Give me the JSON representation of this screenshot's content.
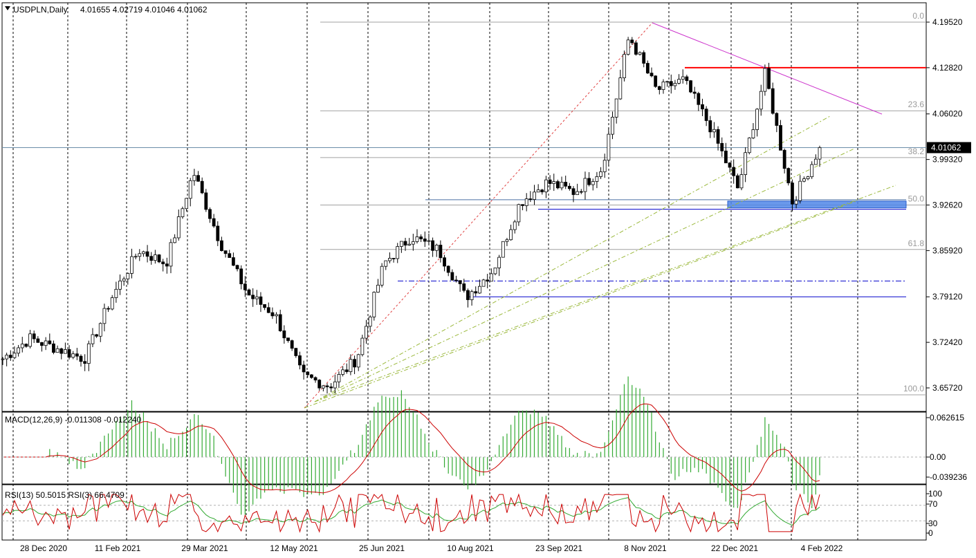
{
  "header": {
    "symbol": "USDPLN,Daily",
    "ohlc": "4.01655 4.02719 4.01046 4.01062"
  },
  "price_axis": {
    "ticks": [
      "4.19520",
      "4.12820",
      "4.06020",
      "3.99320",
      "3.92620",
      "3.85920",
      "3.79120",
      "3.72420",
      "3.65720"
    ],
    "current_price": "4.01062"
  },
  "time_axis": {
    "labels": [
      "28 Dec 2020",
      "11 Feb 2021",
      "29 Mar 2021",
      "12 May 2021",
      "25 Jun 2021",
      "10 Aug 2021",
      "23 Sep 2021",
      "8 Nov 2021",
      "22 Dec 2021",
      "4 Feb 2022"
    ]
  },
  "fibonacci": {
    "levels": [
      "0.0",
      "23.6",
      "38.2",
      "50.0",
      "61.8",
      "100.0"
    ],
    "values": [
      4.1952,
      4.0648,
      3.996,
      3.9262,
      3.8608,
      3.647
    ]
  },
  "macd": {
    "label": "MACD(12,26,9) -0.011308 -0.012240",
    "ticks": [
      "0.062615",
      "0.00",
      "-0.039236"
    ]
  },
  "rsi": {
    "label": "RSI(13) 50.5015  RSI(3) 66.4709",
    "ticks": [
      "100",
      "70",
      "30",
      "0"
    ]
  },
  "colors": {
    "background": "#ffffff",
    "bull_candle": "#ffffff",
    "bear_candle": "#000000",
    "resistance": "#ff0000",
    "trendline": "#cc33cc",
    "support": "#0000cc",
    "zone": "#4f86e8",
    "fan": "#9ab83a",
    "macd_hist": "#33aa33",
    "signal": "#cc0000",
    "rsi_fast": "#cc0000",
    "rsi_slow": "#33aa33"
  },
  "chart_data": {
    "type": "candlestick",
    "title": "USDPLN,Daily",
    "ylim": [
      3.636,
      4.214
    ],
    "x": [
      "28 Dec 2020",
      "11 Feb 2021",
      "29 Mar 2021",
      "12 May 2021",
      "25 Jun 2021",
      "10 Aug 2021",
      "23 Sep 2021",
      "8 Nov 2021",
      "22 Dec 2021",
      "4 Feb 2022"
    ],
    "close_path": [
      [
        "28 Dec 2020",
        3.7
      ],
      [
        "2021-01-20",
        3.73
      ],
      [
        "11 Feb 2021",
        3.715
      ],
      [
        "2021-02-25",
        3.7
      ],
      [
        "2021-03-05",
        3.79
      ],
      [
        "2021-03-10",
        3.86
      ],
      [
        "2021-03-18",
        3.84
      ],
      [
        "29 Mar 2021",
        3.975
      ],
      [
        "2021-04-05",
        3.87
      ],
      [
        "2021-04-15",
        3.795
      ],
      [
        "2021-04-25",
        3.765
      ],
      [
        "12 May 2021",
        3.675
      ],
      [
        "2021-05-20",
        3.66
      ],
      [
        "2021-06-01",
        3.7
      ],
      [
        "25 Jun 2021",
        3.84
      ],
      [
        "2021-07-07",
        3.88
      ],
      [
        "2021-07-20",
        3.86
      ],
      [
        "10 Aug 2021",
        3.79
      ],
      [
        "2021-08-20",
        3.83
      ],
      [
        "2021-09-08",
        3.93
      ],
      [
        "23 Sep 2021",
        3.96
      ],
      [
        "2021-10-05",
        3.945
      ],
      [
        "2021-10-20",
        3.98
      ],
      [
        "8 Nov 2021",
        4.175
      ],
      [
        "2021-11-18",
        4.095
      ],
      [
        "2021-12-05",
        4.11
      ],
      [
        "22 Dec 2021",
        4.04
      ],
      [
        "2022-01-10",
        3.95
      ],
      [
        "2022-01-25",
        4.12
      ],
      [
        "4 Feb 2022",
        3.93
      ],
      [
        "2022-02-08",
        4.011
      ]
    ],
    "annotations": {
      "resistance": 4.1282,
      "support_zone": [
        3.922,
        3.932
      ],
      "support_lines": [
        3.8145,
        3.7912
      ],
      "current": 4.01062
    }
  }
}
